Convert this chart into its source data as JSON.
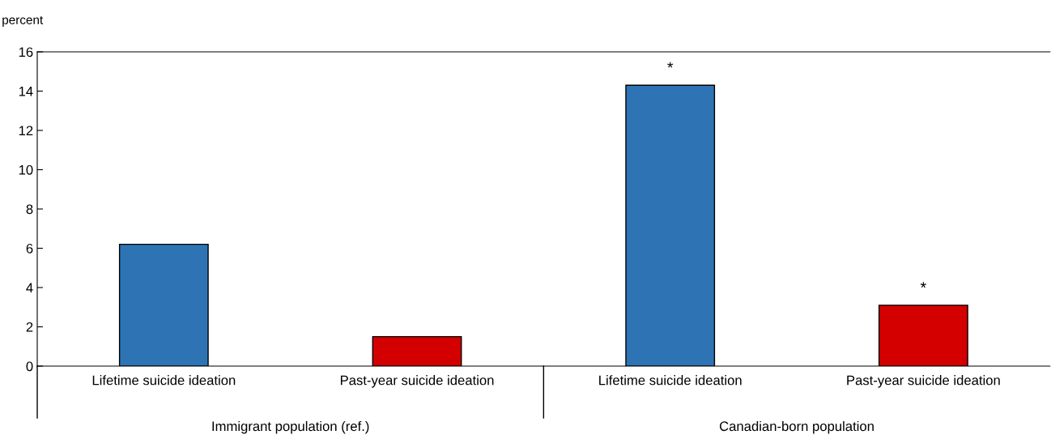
{
  "chart_data": {
    "type": "bar",
    "ylabel": "percent",
    "categories": [
      "Lifetime suicide ideation",
      "Past-year suicide ideation",
      "Lifetime suicide ideation",
      "Past-year suicide ideation"
    ],
    "values": [
      6.2,
      1.5,
      14.3,
      3.1
    ],
    "colors": [
      "#2e74b5",
      "#d40000",
      "#2e74b5",
      "#d40000"
    ],
    "value_labels": [
      null,
      null,
      "*",
      "*"
    ],
    "annotations": [
      "Immigrant population (ref.)",
      "Canadian-born population"
    ],
    "ylim": [
      0,
      16
    ],
    "yticks": [
      0,
      2,
      4,
      6,
      8,
      10,
      12,
      14,
      16
    ],
    "grid": false,
    "legend": false
  }
}
